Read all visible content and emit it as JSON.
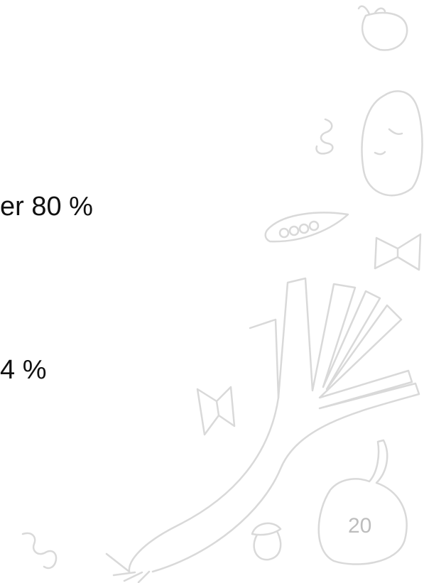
{
  "body": {
    "lines": [
      "er 80 %",
      "4 %"
    ]
  },
  "page_number": "20"
}
